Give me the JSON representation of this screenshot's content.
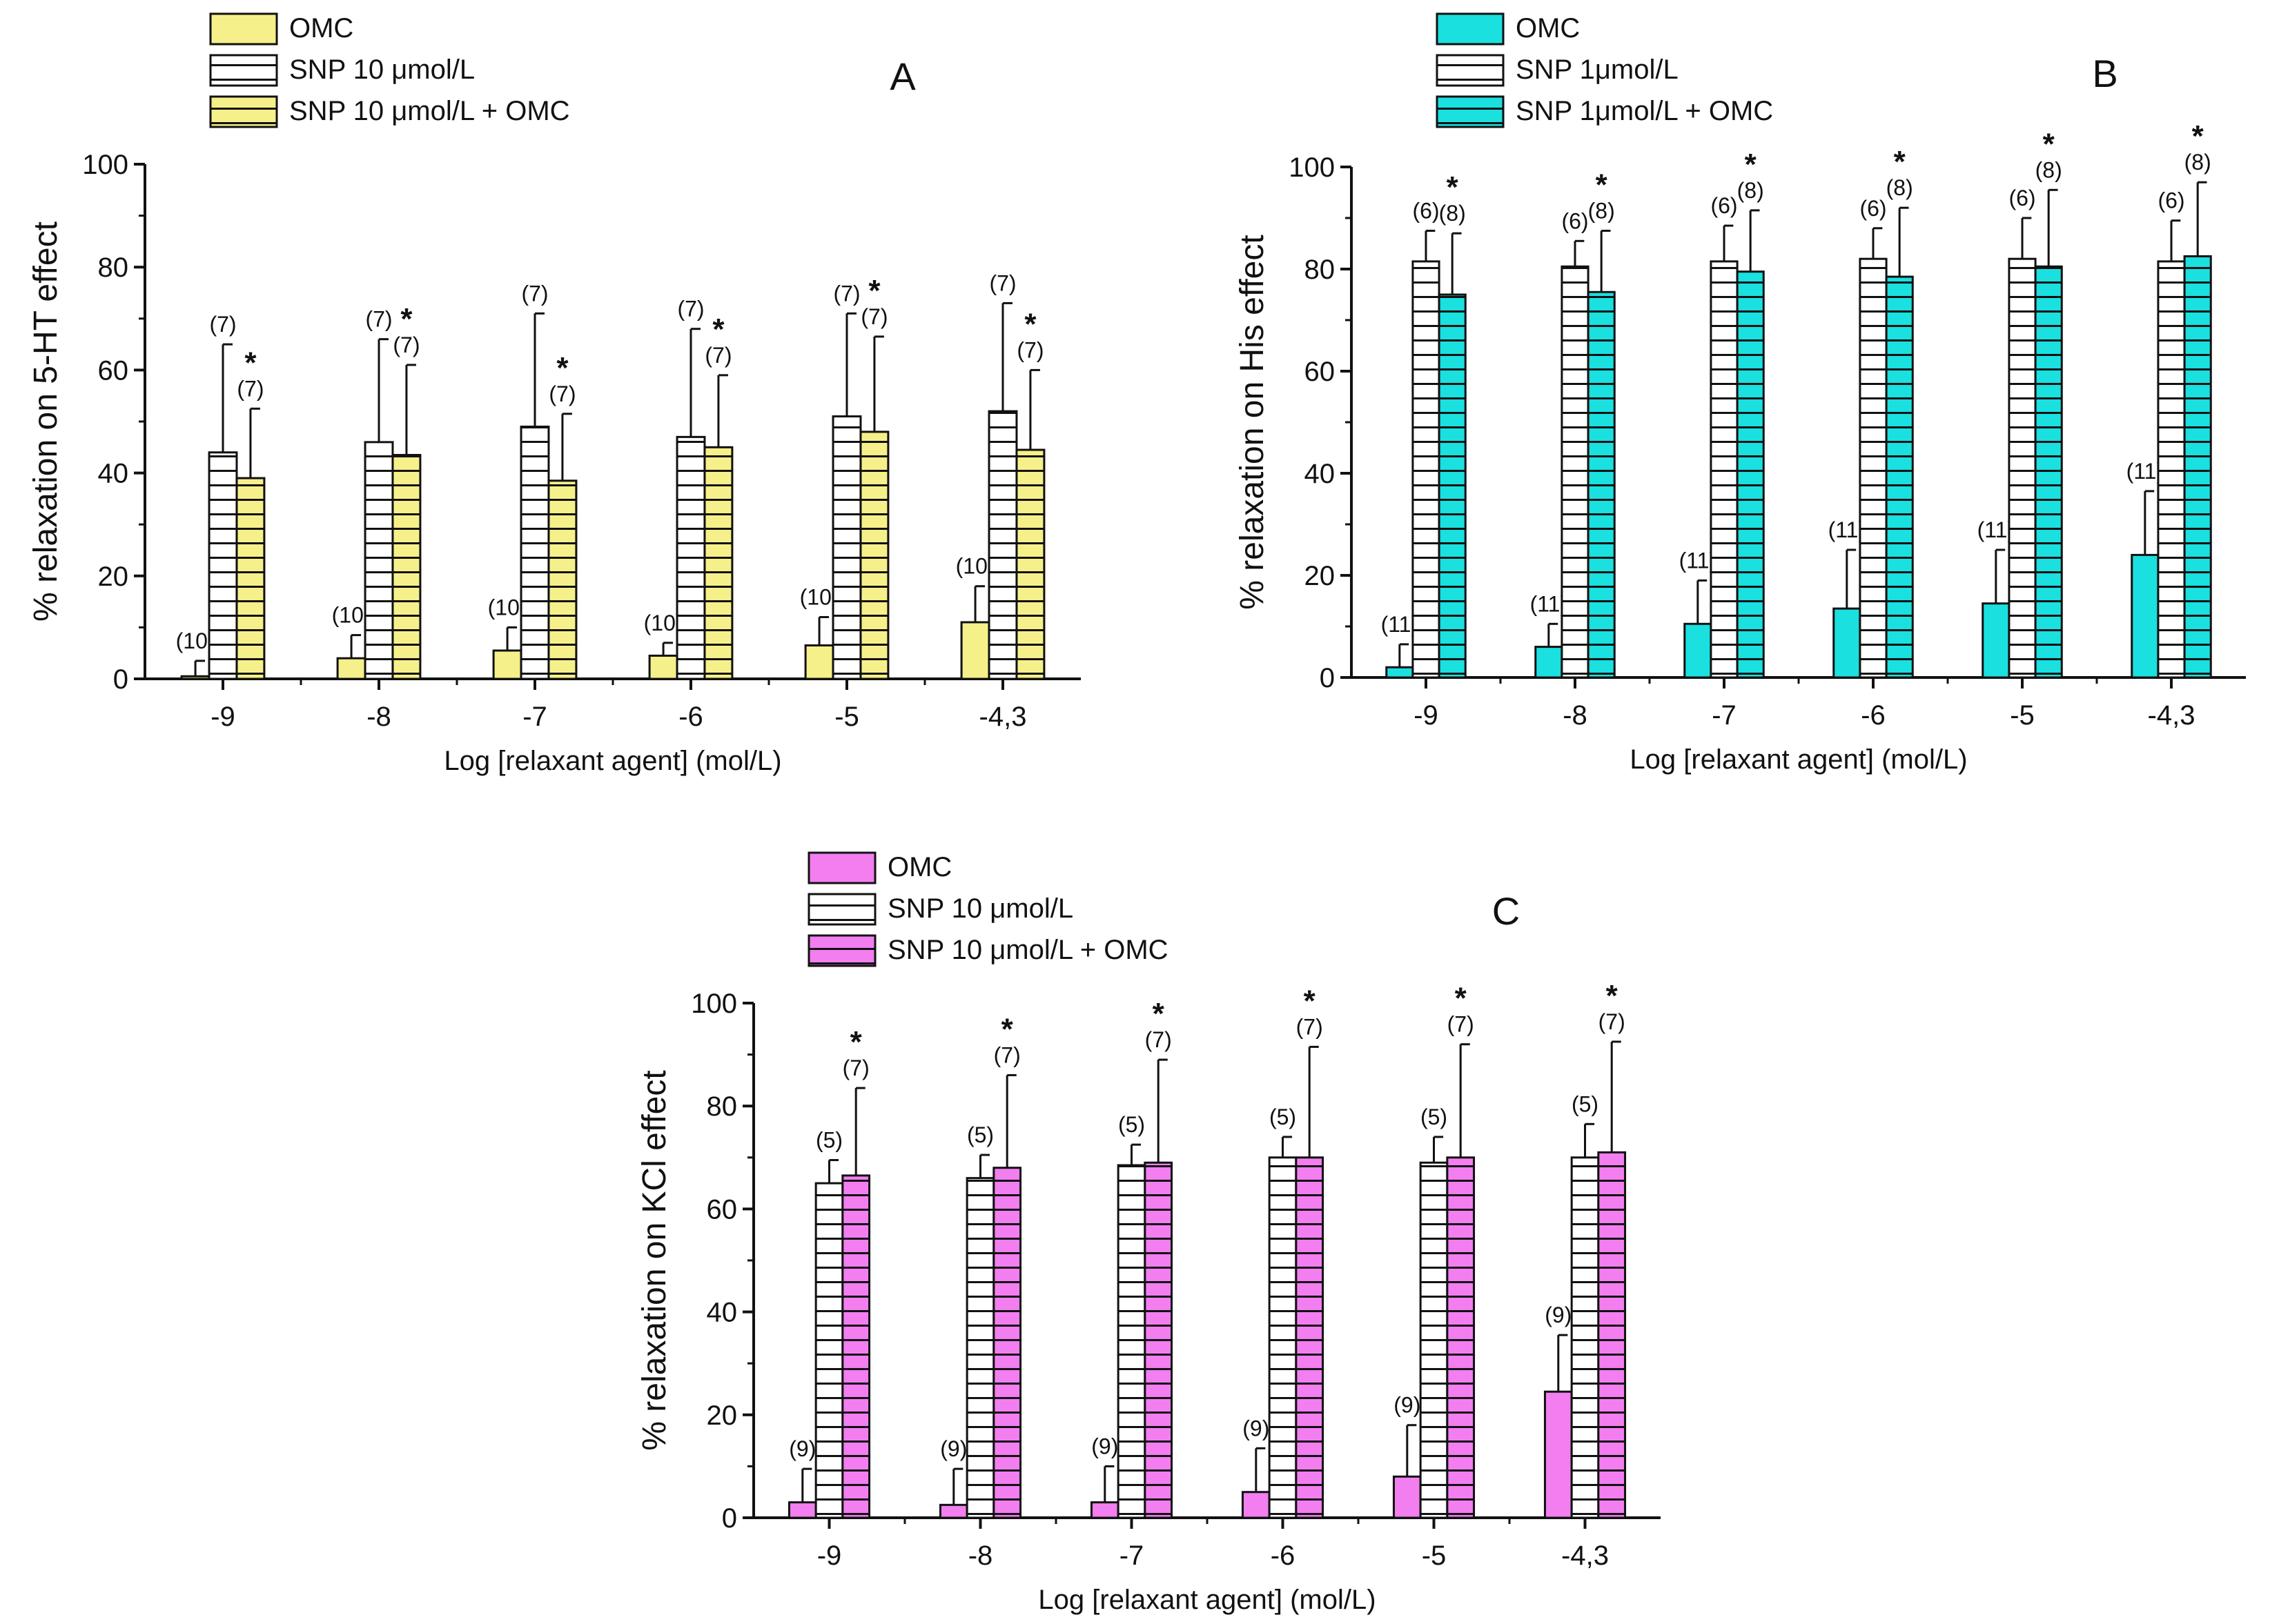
{
  "chart_data": [
    {
      "type": "bar",
      "panel_label": "A",
      "xlabel": "Log [relaxant agent] (mol/L)",
      "ylabel": "% relaxation on 5-HT effect",
      "ylim": [
        0,
        100
      ],
      "yticks": [
        0,
        20,
        40,
        60,
        80,
        100
      ],
      "grid": false,
      "legend_position": "top-left",
      "categories": [
        "-9",
        "-8",
        "-7",
        "-6",
        "-5",
        "-4,3"
      ],
      "series": [
        {
          "name": "OMC",
          "pattern": "solid",
          "color": "#f6f08a",
          "values": [
            0.5,
            4,
            5.5,
            4.5,
            6.5,
            11
          ],
          "errors": [
            3,
            4.5,
            4.5,
            2.5,
            5.5,
            7
          ],
          "n_labels": [
            "(10)",
            "(10)",
            "(10)",
            "(10)",
            "(10)",
            "(10)"
          ],
          "stars": [
            false,
            false,
            false,
            false,
            false,
            false
          ]
        },
        {
          "name": "SNP 10 μmol/L",
          "pattern": "lines",
          "color": "#ffffff",
          "values": [
            44,
            46,
            49,
            47,
            51,
            52
          ],
          "errors": [
            21,
            20,
            22,
            21,
            20,
            21
          ],
          "n_labels": [
            "(7)",
            "(7)",
            "(7)",
            "(7)",
            "(7)",
            "(7)"
          ],
          "stars": [
            false,
            false,
            false,
            false,
            false,
            false
          ]
        },
        {
          "name": "SNP 10 μmol/L + OMC",
          "pattern": "solid-lines",
          "color": "#f6f08a",
          "values": [
            39,
            43.5,
            38.5,
            45,
            48,
            44.5
          ],
          "errors": [
            13.5,
            17.5,
            13,
            14,
            18.5,
            15.5
          ],
          "n_labels": [
            "(7)",
            "(7)",
            "(7)",
            "(7)",
            "(7)",
            "(7)"
          ],
          "stars": [
            true,
            true,
            true,
            true,
            true,
            true
          ]
        }
      ]
    },
    {
      "type": "bar",
      "panel_label": "B",
      "xlabel": "Log [relaxant agent] (mol/L)",
      "ylabel": "% relaxation on His effect",
      "ylim": [
        0,
        100
      ],
      "yticks": [
        0,
        20,
        40,
        60,
        80,
        100
      ],
      "grid": false,
      "legend_position": "top-left",
      "categories": [
        "-9",
        "-8",
        "-7",
        "-6",
        "-5",
        "-4,3"
      ],
      "series": [
        {
          "name": "OMC",
          "pattern": "solid",
          "color": "#1ae0e0",
          "values": [
            2,
            6,
            10.5,
            13.5,
            14.5,
            24
          ],
          "errors": [
            4.5,
            4.5,
            8.5,
            11.5,
            10.5,
            12.5
          ],
          "n_labels": [
            "(11)",
            "(11)",
            "(11)",
            "(11)",
            "(11)",
            "(11)"
          ],
          "stars": [
            false,
            false,
            false,
            false,
            false,
            false
          ]
        },
        {
          "name": "SNP 1μmol/L",
          "pattern": "lines",
          "color": "#ffffff",
          "values": [
            81.5,
            80.5,
            81.5,
            82,
            82,
            81.5
          ],
          "errors": [
            6,
            5,
            7,
            6,
            8,
            8
          ],
          "n_labels": [
            "(6)",
            "(6)",
            "(6)",
            "(6)",
            "(6)",
            "(6)"
          ],
          "stars": [
            false,
            false,
            false,
            false,
            false,
            false
          ]
        },
        {
          "name": "SNP 1μmol/L + OMC",
          "pattern": "solid-lines",
          "color": "#1ae0e0",
          "values": [
            75,
            75.5,
            79.5,
            78.5,
            80.5,
            82.5
          ],
          "errors": [
            12,
            12,
            12,
            13.5,
            15,
            14.5
          ],
          "n_labels": [
            "(8)",
            "(8)",
            "(8)",
            "(8)",
            "(8)",
            "(8)"
          ],
          "stars": [
            true,
            true,
            true,
            true,
            true,
            true
          ]
        }
      ]
    },
    {
      "type": "bar",
      "panel_label": "C",
      "xlabel": "Log [relaxant agent] (mol/L)",
      "ylabel": "% relaxation on KCl effect",
      "ylim": [
        0,
        100
      ],
      "yticks": [
        0,
        20,
        40,
        60,
        80,
        100
      ],
      "grid": false,
      "legend_position": "top-left",
      "categories": [
        "-9",
        "-8",
        "-7",
        "-6",
        "-5",
        "-4,3"
      ],
      "series": [
        {
          "name": "OMC",
          "pattern": "solid",
          "color": "#f27ef0",
          "values": [
            3,
            2.5,
            3,
            5,
            8,
            24.5
          ],
          "errors": [
            6.5,
            7,
            7,
            8.5,
            10,
            11
          ],
          "n_labels": [
            "(9)",
            "(9)",
            "(9)",
            "(9)",
            "(9)",
            "(9)"
          ],
          "stars": [
            false,
            false,
            false,
            false,
            false,
            false
          ]
        },
        {
          "name": "SNP 10 μmol/L",
          "pattern": "lines",
          "color": "#ffffff",
          "values": [
            65,
            66,
            68.5,
            70,
            69,
            70
          ],
          "errors": [
            4.5,
            4.5,
            4,
            4,
            5,
            6.5
          ],
          "n_labels": [
            "(5)",
            "(5)",
            "(5)",
            "(5)",
            "(5)",
            "(5)"
          ],
          "stars": [
            false,
            false,
            false,
            false,
            false,
            false
          ]
        },
        {
          "name": "SNP 10 μmol/L + OMC",
          "pattern": "solid-lines",
          "color": "#f27ef0",
          "values": [
            66.5,
            68,
            69,
            70,
            70,
            71
          ],
          "errors": [
            17,
            18,
            20,
            21.5,
            22,
            21.5
          ],
          "n_labels": [
            "(7)",
            "(7)",
            "(7)",
            "(7)",
            "(7)",
            "(7)"
          ],
          "stars": [
            true,
            true,
            true,
            true,
            true,
            true
          ]
        }
      ]
    }
  ]
}
